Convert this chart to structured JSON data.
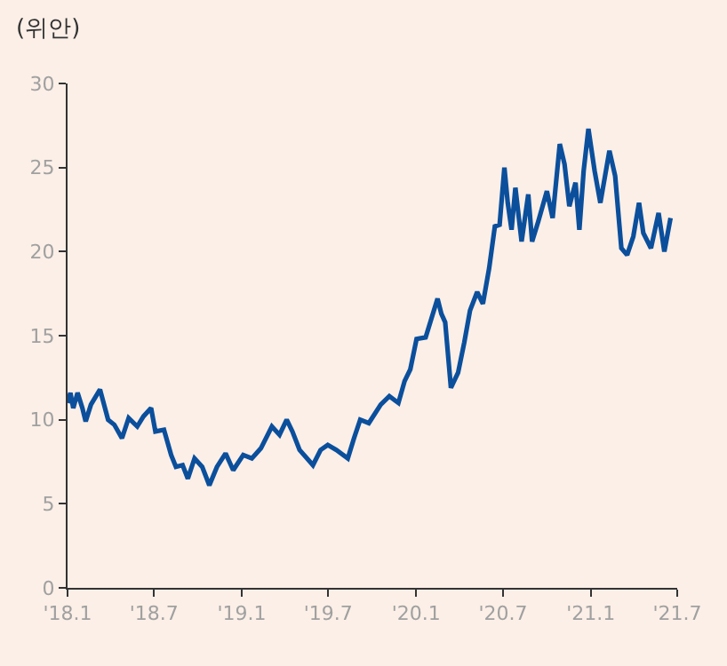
{
  "chart_data": {
    "type": "line",
    "ylabel": "(위안)",
    "x": [
      "2018-01-01",
      "2018-01-07",
      "2018-01-13",
      "2018-01-22",
      "2018-02-01",
      "2018-02-08",
      "2018-02-19",
      "2018-03-10",
      "2018-03-27",
      "2018-04-09",
      "2018-04-25",
      "2018-05-09",
      "2018-05-27",
      "2018-06-09",
      "2018-06-25",
      "2018-07-04",
      "2018-07-22",
      "2018-08-06",
      "2018-08-16",
      "2018-08-30",
      "2018-09-10",
      "2018-09-24",
      "2018-10-10",
      "2018-10-25",
      "2018-11-10",
      "2018-11-28",
      "2018-12-14",
      "2019-01-04",
      "2019-01-22",
      "2019-02-10",
      "2019-03-05",
      "2019-03-21",
      "2019-04-05",
      "2019-04-17",
      "2019-05-02",
      "2019-05-30",
      "2019-06-15",
      "2019-06-30",
      "2019-07-18",
      "2019-08-11",
      "2019-08-24",
      "2019-09-06",
      "2019-09-24",
      "2019-10-19",
      "2019-11-06",
      "2019-11-25",
      "2019-12-08",
      "2019-12-20",
      "2020-01-02",
      "2020-01-21",
      "2020-02-02",
      "2020-02-15",
      "2020-02-23",
      "2020-03-02",
      "2020-03-14",
      "2020-03-29",
      "2020-04-11",
      "2020-04-23",
      "2020-05-08",
      "2020-05-20",
      "2020-06-02",
      "2020-06-14",
      "2020-06-24",
      "2020-07-04",
      "2020-07-11",
      "2020-07-19",
      "2020-07-27",
      "2020-08-09",
      "2020-08-23",
      "2020-08-31",
      "2020-09-13",
      "2020-10-01",
      "2020-10-13",
      "2020-10-28",
      "2020-11-07",
      "2020-11-17",
      "2020-11-30",
      "2020-12-08",
      "2020-12-17",
      "2020-12-27",
      "2021-01-09",
      "2021-01-21",
      "2021-02-09",
      "2021-02-21",
      "2021-03-06",
      "2021-03-18",
      "2021-03-31",
      "2021-04-12",
      "2021-04-21",
      "2021-05-07",
      "2021-05-23",
      "2021-06-04",
      "2021-06-17"
    ],
    "series": [
      {
        "color": "#0b4f9c",
        "values": [
          11.0,
          11.6,
          10.7,
          11.6,
          10.7,
          9.9,
          10.9,
          11.8,
          10.0,
          9.7,
          8.9,
          10.1,
          9.6,
          10.2,
          10.7,
          9.3,
          9.4,
          7.9,
          7.2,
          7.3,
          6.5,
          7.7,
          7.2,
          6.1,
          7.2,
          8.0,
          7.0,
          7.9,
          7.7,
          8.3,
          9.6,
          9.1,
          10.0,
          9.3,
          8.2,
          7.3,
          8.2,
          8.5,
          8.2,
          7.7,
          8.9,
          10.0,
          9.8,
          10.9,
          11.4,
          11.0,
          12.3,
          13.0,
          14.8,
          14.9,
          16.0,
          17.2,
          16.3,
          15.8,
          11.9,
          12.8,
          14.6,
          16.5,
          17.6,
          16.9,
          19.0,
          21.5,
          21.6,
          25.0,
          22.9,
          21.3,
          23.8,
          20.6,
          23.4,
          20.6,
          21.8,
          23.6,
          22.0,
          26.4,
          25.2,
          22.7,
          24.1,
          21.3,
          24.8,
          27.3,
          24.8,
          22.9,
          26.0,
          24.5,
          20.2,
          19.8,
          20.9,
          22.9,
          21.1,
          20.2,
          22.3,
          20.0,
          22.0
        ]
      }
    ],
    "xlim": [
      "2018-01-01",
      "2021-07-01"
    ],
    "xticks": [
      {
        "value": "2018-01-01",
        "label": "'18.1"
      },
      {
        "value": "2018-07-01",
        "label": "'18.7"
      },
      {
        "value": "2019-01-01",
        "label": "'19.1"
      },
      {
        "value": "2019-07-01",
        "label": "'19.7"
      },
      {
        "value": "2020-01-01",
        "label": "'20.1"
      },
      {
        "value": "2020-07-01",
        "label": "'20.7"
      },
      {
        "value": "2021-01-01",
        "label": "'21.1"
      },
      {
        "value": "2021-07-01",
        "label": "'21.7"
      }
    ],
    "ylim": [
      0,
      30
    ],
    "yticks": [
      0,
      5,
      10,
      15,
      20,
      25,
      30
    ],
    "grid": false
  }
}
